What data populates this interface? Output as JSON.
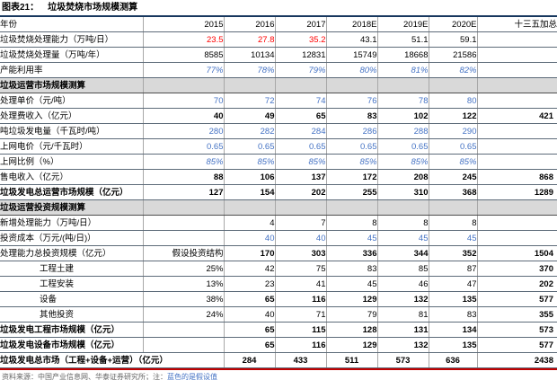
{
  "title": {
    "prefix": "图表21：",
    "text": "垃圾焚烧市场规模测算"
  },
  "colors": {
    "top_rule": "#17375E",
    "bottom_rule": "#C00000",
    "assumption_blue": "#4472C4",
    "highlight_red": "#FF0000",
    "section_band_gray": "#D9D9D9"
  },
  "table": {
    "columns": [
      "年份",
      "2015",
      "2016",
      "2017",
      "2018E",
      "2019E",
      "2020E",
      "十三五加总"
    ],
    "rows": [
      {
        "label": "垃圾焚烧处理能力（万吨/日）",
        "lcls": "",
        "cells": [
          {
            "v": "23.5",
            "c": "red"
          },
          {
            "v": "27.8",
            "c": "red"
          },
          {
            "v": "35.2",
            "c": "red"
          },
          {
            "v": "43.1",
            "c": ""
          },
          {
            "v": "51.1",
            "c": ""
          },
          {
            "v": "59.1",
            "c": ""
          },
          {
            "v": "",
            "c": ""
          }
        ]
      },
      {
        "label": "垃圾焚烧处理量（万吨/年）",
        "lcls": "",
        "cells": [
          {
            "v": "8585",
            "c": ""
          },
          {
            "v": "10134",
            "c": ""
          },
          {
            "v": "12831",
            "c": ""
          },
          {
            "v": "15749",
            "c": ""
          },
          {
            "v": "18668",
            "c": ""
          },
          {
            "v": "21586",
            "c": ""
          },
          {
            "v": "",
            "c": ""
          }
        ]
      },
      {
        "label": "产能利用率",
        "lcls": "",
        "cells": [
          {
            "v": "77%",
            "c": "blueitalic"
          },
          {
            "v": "78%",
            "c": "blueitalic"
          },
          {
            "v": "79%",
            "c": "blueitalic"
          },
          {
            "v": "80%",
            "c": "blueitalic"
          },
          {
            "v": "81%",
            "c": "blueitalic"
          },
          {
            "v": "82%",
            "c": "blueitalic"
          },
          {
            "v": "",
            "c": ""
          }
        ]
      },
      {
        "section": true,
        "label": "垃圾运营市场规模测算"
      },
      {
        "label": "处理单价（元/吨）",
        "lcls": "",
        "cells": [
          {
            "v": "70",
            "c": "blue"
          },
          {
            "v": "72",
            "c": "blue"
          },
          {
            "v": "74",
            "c": "blue"
          },
          {
            "v": "76",
            "c": "blue"
          },
          {
            "v": "78",
            "c": "blue"
          },
          {
            "v": "80",
            "c": "blue"
          },
          {
            "v": "",
            "c": ""
          }
        ]
      },
      {
        "label": "处理费收入（亿元）",
        "lcls": "",
        "cells": [
          {
            "v": "40",
            "c": "bold"
          },
          {
            "v": "49",
            "c": "bold"
          },
          {
            "v": "65",
            "c": "bold"
          },
          {
            "v": "83",
            "c": "bold"
          },
          {
            "v": "102",
            "c": "bold"
          },
          {
            "v": "122",
            "c": "bold"
          },
          {
            "v": "421",
            "c": ""
          }
        ]
      },
      {
        "label": "吨垃圾发电量（千瓦时/吨）",
        "lcls": "",
        "cells": [
          {
            "v": "280",
            "c": "blue"
          },
          {
            "v": "282",
            "c": "blue"
          },
          {
            "v": "284",
            "c": "blue"
          },
          {
            "v": "286",
            "c": "blue"
          },
          {
            "v": "288",
            "c": "blue"
          },
          {
            "v": "290",
            "c": "blue"
          },
          {
            "v": "",
            "c": ""
          }
        ]
      },
      {
        "label": "上网电价（元/千瓦时）",
        "lcls": "",
        "cells": [
          {
            "v": "0.65",
            "c": "blue"
          },
          {
            "v": "0.65",
            "c": "blue"
          },
          {
            "v": "0.65",
            "c": "blue"
          },
          {
            "v": "0.65",
            "c": "blue"
          },
          {
            "v": "0.65",
            "c": "blue"
          },
          {
            "v": "0.65",
            "c": "blue"
          },
          {
            "v": "",
            "c": ""
          }
        ]
      },
      {
        "label": "上网比例（%）",
        "lcls": "",
        "cells": [
          {
            "v": "85%",
            "c": "blueitalic"
          },
          {
            "v": "85%",
            "c": "blueitalic"
          },
          {
            "v": "85%",
            "c": "blueitalic"
          },
          {
            "v": "85%",
            "c": "blueitalic"
          },
          {
            "v": "85%",
            "c": "blueitalic"
          },
          {
            "v": "85%",
            "c": "blueitalic"
          },
          {
            "v": "",
            "c": ""
          }
        ]
      },
      {
        "label": "售电收入（亿元）",
        "lcls": "",
        "cells": [
          {
            "v": "88",
            "c": "bold"
          },
          {
            "v": "106",
            "c": "bold"
          },
          {
            "v": "137",
            "c": "bold"
          },
          {
            "v": "172",
            "c": "bold"
          },
          {
            "v": "208",
            "c": "bold"
          },
          {
            "v": "245",
            "c": "bold"
          },
          {
            "v": "868",
            "c": ""
          }
        ]
      },
      {
        "label": "垃圾发电总运营市场规模（亿元）",
        "lcls": "bold",
        "cells": [
          {
            "v": "127",
            "c": "bold"
          },
          {
            "v": "154",
            "c": "bold"
          },
          {
            "v": "202",
            "c": "bold"
          },
          {
            "v": "255",
            "c": "bold"
          },
          {
            "v": "310",
            "c": "bold"
          },
          {
            "v": "368",
            "c": "bold"
          },
          {
            "v": "1289",
            "c": ""
          }
        ]
      },
      {
        "section": true,
        "label": "垃圾运营投资规模测算"
      },
      {
        "label": "新增处理能力（万吨/日）",
        "lcls": "",
        "cells": [
          {
            "v": "",
            "c": ""
          },
          {
            "v": "4",
            "c": ""
          },
          {
            "v": "7",
            "c": ""
          },
          {
            "v": "8",
            "c": ""
          },
          {
            "v": "8",
            "c": ""
          },
          {
            "v": "8",
            "c": ""
          },
          {
            "v": "",
            "c": ""
          }
        ]
      },
      {
        "label": "投资成本（万元/(吨/日)）",
        "lcls": "",
        "cells": [
          {
            "v": "",
            "c": ""
          },
          {
            "v": "40",
            "c": "blue"
          },
          {
            "v": "40",
            "c": "blue"
          },
          {
            "v": "45",
            "c": "blue"
          },
          {
            "v": "45",
            "c": "blue"
          },
          {
            "v": "45",
            "c": "blue"
          },
          {
            "v": "",
            "c": ""
          }
        ]
      },
      {
        "label": "处理能力总投资规模（亿元）",
        "lcls": "",
        "cells": [
          {
            "v": "假设投资结构",
            "c": ""
          },
          {
            "v": "170",
            "c": "bold"
          },
          {
            "v": "303",
            "c": "bold"
          },
          {
            "v": "336",
            "c": "bold"
          },
          {
            "v": "344",
            "c": "bold"
          },
          {
            "v": "352",
            "c": "bold"
          },
          {
            "v": "1504",
            "c": ""
          }
        ]
      },
      {
        "label": "工程土建",
        "lcls": "indent",
        "cells": [
          {
            "v": "25%",
            "c": ""
          },
          {
            "v": "42",
            "c": ""
          },
          {
            "v": "75",
            "c": ""
          },
          {
            "v": "83",
            "c": ""
          },
          {
            "v": "85",
            "c": ""
          },
          {
            "v": "87",
            "c": ""
          },
          {
            "v": "370",
            "c": ""
          }
        ]
      },
      {
        "label": "工程安装",
        "lcls": "indent",
        "cells": [
          {
            "v": "13%",
            "c": ""
          },
          {
            "v": "23",
            "c": ""
          },
          {
            "v": "41",
            "c": ""
          },
          {
            "v": "45",
            "c": ""
          },
          {
            "v": "46",
            "c": ""
          },
          {
            "v": "47",
            "c": ""
          },
          {
            "v": "202",
            "c": ""
          }
        ]
      },
      {
        "label": "设备",
        "lcls": "indent",
        "cells": [
          {
            "v": "38%",
            "c": ""
          },
          {
            "v": "65",
            "c": "bold"
          },
          {
            "v": "116",
            "c": "bold"
          },
          {
            "v": "129",
            "c": "bold"
          },
          {
            "v": "132",
            "c": "bold"
          },
          {
            "v": "135",
            "c": "bold"
          },
          {
            "v": "577",
            "c": ""
          }
        ]
      },
      {
        "label": "其他投资",
        "lcls": "indent",
        "cells": [
          {
            "v": "24%",
            "c": ""
          },
          {
            "v": "40",
            "c": ""
          },
          {
            "v": "71",
            "c": ""
          },
          {
            "v": "79",
            "c": ""
          },
          {
            "v": "81",
            "c": ""
          },
          {
            "v": "83",
            "c": ""
          },
          {
            "v": "355",
            "c": ""
          }
        ]
      },
      {
        "label": "垃圾发电工程市场规模（亿元）",
        "lcls": "bold",
        "cells": [
          {
            "v": "",
            "c": ""
          },
          {
            "v": "65",
            "c": "bold"
          },
          {
            "v": "115",
            "c": "bold"
          },
          {
            "v": "128",
            "c": "bold"
          },
          {
            "v": "131",
            "c": "bold"
          },
          {
            "v": "134",
            "c": "bold"
          },
          {
            "v": "573",
            "c": ""
          }
        ]
      },
      {
        "label": "垃圾发电设备市场规模（亿元）",
        "lcls": "bold",
        "cells": [
          {
            "v": "",
            "c": ""
          },
          {
            "v": "65",
            "c": "bold"
          },
          {
            "v": "116",
            "c": "bold"
          },
          {
            "v": "129",
            "c": "bold"
          },
          {
            "v": "132",
            "c": "bold"
          },
          {
            "v": "135",
            "c": "bold"
          },
          {
            "v": "577",
            "c": ""
          }
        ]
      },
      {
        "label": "垃圾发电总市场（工程+设备+运营）（亿元）",
        "lcls": "bold",
        "span": 2,
        "cells": [
          {
            "v": "284",
            "c": "bold center"
          },
          {
            "v": "433",
            "c": "bold center"
          },
          {
            "v": "511",
            "c": "bold center"
          },
          {
            "v": "573",
            "c": "bold center"
          },
          {
            "v": "636",
            "c": "bold center"
          },
          {
            "v": "2438",
            "c": ""
          }
        ]
      }
    ]
  },
  "footer": {
    "source": "资料来源：中国产业信息网、华泰证券研究所；注：",
    "note_blue": "蓝色的是假设值"
  }
}
